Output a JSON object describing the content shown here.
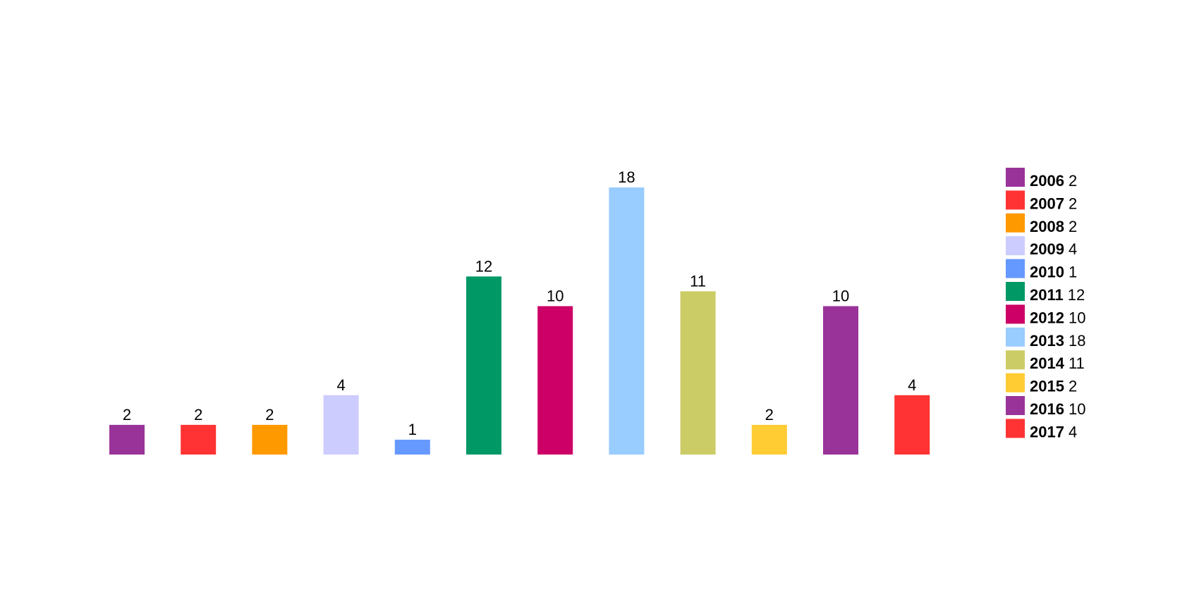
{
  "chart_data": {
    "type": "bar",
    "categories": [
      "2006",
      "2007",
      "2008",
      "2009",
      "2010",
      "2011",
      "2012",
      "2013",
      "2014",
      "2015",
      "2016",
      "2017"
    ],
    "values": [
      2,
      2,
      2,
      4,
      1,
      12,
      10,
      18,
      11,
      2,
      10,
      4
    ],
    "colors": [
      "#993399",
      "#ff3333",
      "#ff9900",
      "#ccccff",
      "#6699ff",
      "#009966",
      "#cc0066",
      "#99ccff",
      "#cccc66",
      "#ffcc33",
      "#993399",
      "#ff3333"
    ],
    "legend": "right"
  }
}
